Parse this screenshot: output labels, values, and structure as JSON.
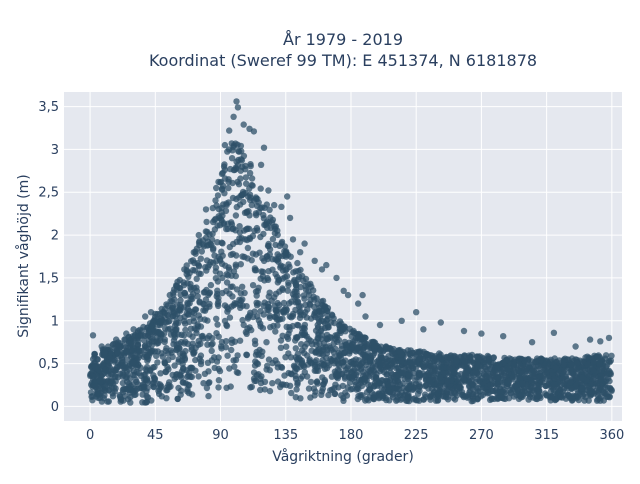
{
  "chart_data": {
    "type": "scatter",
    "title_line1": "År 1979 - 2019",
    "title_line2": "Koordinat (Sweref 99 TM): E 451374, N 6181878",
    "xlabel": "Vågriktning (grader)",
    "ylabel": "Signifikant våghöjd (m)",
    "xlim": [
      -18,
      367
    ],
    "ylim": [
      -0.17,
      3.67
    ],
    "x_ticks": [
      0,
      45,
      90,
      135,
      180,
      225,
      270,
      315,
      360
    ],
    "x_tick_labels": [
      "0",
      "45",
      "90",
      "135",
      "180",
      "225",
      "270",
      "315",
      "360"
    ],
    "y_ticks": [
      0,
      0.5,
      1,
      1.5,
      2,
      2.5,
      3,
      3.5
    ],
    "y_tick_labels": [
      "0",
      "0,5",
      "1",
      "1,5",
      "2",
      "2,5",
      "3",
      "3,5"
    ],
    "grid": true,
    "legend": "none",
    "marker_color": "#2e5068",
    "plot_bg": "#e5e8ef",
    "envelope": {
      "x": [
        0,
        10,
        20,
        30,
        40,
        50,
        60,
        70,
        80,
        85,
        90,
        95,
        100,
        105,
        110,
        115,
        120,
        125,
        130,
        135,
        140,
        150,
        160,
        170,
        180,
        190,
        200,
        210,
        220,
        230,
        240,
        250,
        260,
        270,
        280,
        290,
        300,
        310,
        320,
        330,
        340,
        350,
        360
      ],
      "upper": [
        0.62,
        0.68,
        0.76,
        0.86,
        0.98,
        1.15,
        1.45,
        1.75,
        2.15,
        2.4,
        2.75,
        3.0,
        3.15,
        3.05,
        2.95,
        2.75,
        2.45,
        2.25,
        2.05,
        1.9,
        1.75,
        1.5,
        1.25,
        1.05,
        0.9,
        0.8,
        0.72,
        0.68,
        0.66,
        0.64,
        0.62,
        0.6,
        0.6,
        0.6,
        0.58,
        0.56,
        0.56,
        0.56,
        0.56,
        0.56,
        0.58,
        0.6,
        0.62
      ],
      "lower": [
        0.05,
        0.05,
        0.05,
        0.04,
        0.04,
        0.05,
        0.06,
        0.08,
        0.1,
        0.12,
        0.15,
        0.18,
        0.2,
        0.2,
        0.18,
        0.17,
        0.15,
        0.13,
        0.12,
        0.1,
        0.09,
        0.07,
        0.06,
        0.06,
        0.06,
        0.06,
        0.06,
        0.06,
        0.06,
        0.06,
        0.06,
        0.06,
        0.06,
        0.06,
        0.06,
        0.06,
        0.06,
        0.06,
        0.06,
        0.06,
        0.06,
        0.06,
        0.06
      ]
    },
    "outlier_points": [
      {
        "x": 101,
        "y": 3.56
      },
      {
        "x": 102,
        "y": 3.49
      },
      {
        "x": 99,
        "y": 3.38
      },
      {
        "x": 106,
        "y": 3.29
      },
      {
        "x": 96,
        "y": 3.22
      },
      {
        "x": 110,
        "y": 3.24
      },
      {
        "x": 113,
        "y": 3.21
      },
      {
        "x": 93,
        "y": 3.05
      },
      {
        "x": 120,
        "y": 3.02
      },
      {
        "x": 118,
        "y": 2.82
      },
      {
        "x": 87,
        "y": 2.55
      },
      {
        "x": 123,
        "y": 2.52
      },
      {
        "x": 127,
        "y": 2.35
      },
      {
        "x": 132,
        "y": 2.33
      },
      {
        "x": 136,
        "y": 2.45
      },
      {
        "x": 138,
        "y": 2.2
      },
      {
        "x": 80,
        "y": 2.3
      },
      {
        "x": 75,
        "y": 2.0
      },
      {
        "x": 140,
        "y": 1.95
      },
      {
        "x": 145,
        "y": 1.8
      },
      {
        "x": 148,
        "y": 1.9
      },
      {
        "x": 155,
        "y": 1.7
      },
      {
        "x": 160,
        "y": 1.6
      },
      {
        "x": 163,
        "y": 1.65
      },
      {
        "x": 65,
        "y": 1.6
      },
      {
        "x": 60,
        "y": 1.4
      },
      {
        "x": 55,
        "y": 1.3
      },
      {
        "x": 50,
        "y": 1.1
      },
      {
        "x": 170,
        "y": 1.5
      },
      {
        "x": 175,
        "y": 1.35
      },
      {
        "x": 178,
        "y": 1.3
      },
      {
        "x": 185,
        "y": 1.2
      },
      {
        "x": 188,
        "y": 1.3
      },
      {
        "x": 190,
        "y": 1.05
      },
      {
        "x": 200,
        "y": 0.95
      },
      {
        "x": 215,
        "y": 1.0
      },
      {
        "x": 225,
        "y": 1.1
      },
      {
        "x": 230,
        "y": 0.9
      },
      {
        "x": 242,
        "y": 0.98
      },
      {
        "x": 258,
        "y": 0.88
      },
      {
        "x": 270,
        "y": 0.85
      },
      {
        "x": 285,
        "y": 0.82
      },
      {
        "x": 305,
        "y": 0.75
      },
      {
        "x": 320,
        "y": 0.86
      },
      {
        "x": 335,
        "y": 0.7
      },
      {
        "x": 345,
        "y": 0.78
      },
      {
        "x": 352,
        "y": 0.76
      },
      {
        "x": 358,
        "y": 0.8
      },
      {
        "x": 2,
        "y": 0.83
      },
      {
        "x": 8,
        "y": 0.7
      },
      {
        "x": 18,
        "y": 0.78
      },
      {
        "x": 25,
        "y": 0.85
      },
      {
        "x": 30,
        "y": 0.9
      },
      {
        "x": 38,
        "y": 1.05
      },
      {
        "x": 42,
        "y": 1.1
      },
      {
        "x": 45,
        "y": 1.08
      }
    ]
  }
}
